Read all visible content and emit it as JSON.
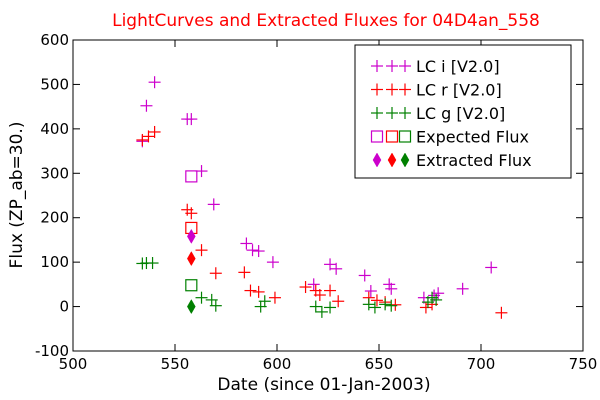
{
  "chart_data": {
    "type": "scatter",
    "title": "LightCurves and Extracted Fluxes for 04D4an_558",
    "title_color": "#ff0000",
    "xlabel": "Date (since 01-Jan-2003)",
    "ylabel": "Flux (ZP_ab=30.)",
    "xlim": [
      500,
      750
    ],
    "ylim": [
      -100,
      600
    ],
    "xticks": [
      "500",
      "550",
      "600",
      "650",
      "700",
      "750"
    ],
    "yticks": [
      "-100",
      "0",
      "100",
      "200",
      "300",
      "400",
      "500",
      "600"
    ],
    "grid": false,
    "legend_position": "top-right",
    "series": [
      {
        "name": "LC i [V2.0]",
        "marker": "plus",
        "color": "#cc00cc",
        "x": [
          534,
          536,
          540,
          556,
          558,
          563,
          569,
          585,
          588,
          591,
          598,
          618,
          626,
          629,
          643,
          646,
          655,
          656,
          672,
          677,
          679,
          691,
          705
        ],
        "y": [
          372,
          452,
          505,
          422,
          422,
          305,
          230,
          142,
          127,
          125,
          100,
          50,
          95,
          85,
          70,
          35,
          50,
          40,
          20,
          25,
          30,
          40,
          88
        ]
      },
      {
        "name": "LC r [V2.0]",
        "marker": "plus",
        "color": "#ff0000",
        "x": [
          534,
          537,
          540,
          556,
          558,
          563,
          570,
          584,
          587,
          591,
          599,
          614,
          619,
          621,
          626,
          630,
          645,
          649,
          653,
          658,
          673,
          676,
          710
        ],
        "y": [
          375,
          383,
          393,
          218,
          210,
          127,
          75,
          77,
          36,
          33,
          20,
          44,
          36,
          26,
          36,
          12,
          20,
          14,
          10,
          4,
          -2,
          5,
          -14
        ]
      },
      {
        "name": "LC g [V2.0]",
        "marker": "plus",
        "color": "#008000",
        "x": [
          534,
          536,
          539,
          563,
          568,
          570,
          592,
          594,
          619,
          622,
          626,
          645,
          648,
          653,
          656,
          674,
          676,
          678
        ],
        "y": [
          97,
          98,
          98,
          20,
          15,
          2,
          0,
          12,
          0,
          -12,
          -2,
          5,
          -2,
          5,
          2,
          10,
          20,
          15
        ]
      },
      {
        "name": "Expected Flux",
        "marker": "square",
        "colors": [
          "#cc00cc",
          "#ff0000",
          "#008000"
        ],
        "x": [
          558,
          558,
          558
        ],
        "y": [
          293,
          177,
          48
        ]
      },
      {
        "name": "Extracted Flux",
        "marker": "diamond",
        "colors": [
          "#cc00cc",
          "#ff0000",
          "#008000"
        ],
        "x": [
          558,
          558,
          558
        ],
        "y": [
          158,
          108,
          0
        ]
      }
    ]
  }
}
